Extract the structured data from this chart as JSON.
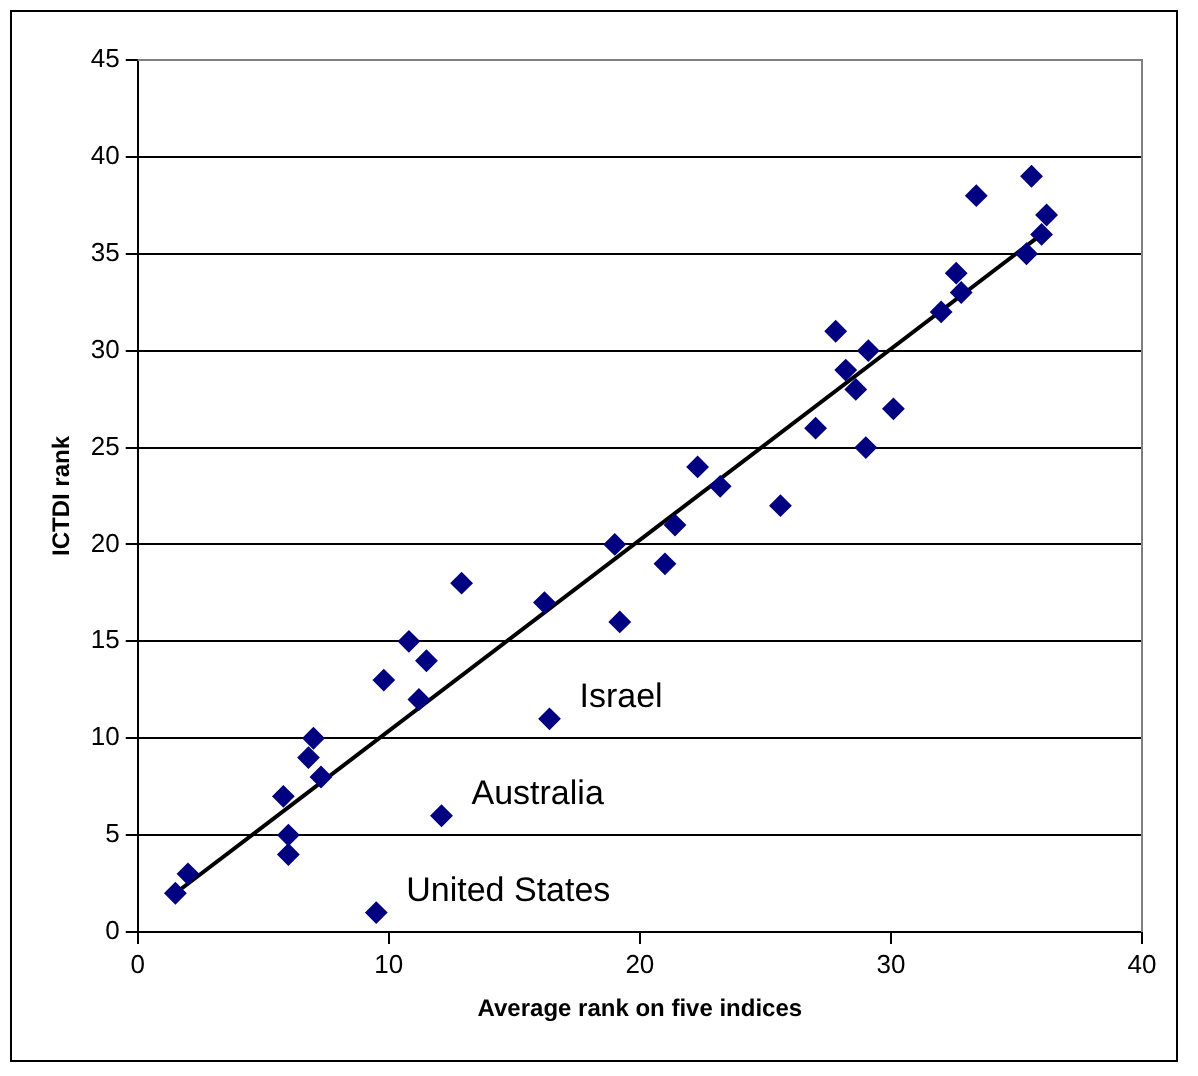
{
  "chart_data": {
    "type": "scatter",
    "xlabel": "Average rank on five indices",
    "ylabel": "ICTDI rank",
    "xlim": [
      0,
      40
    ],
    "xticks": [
      0,
      10,
      20,
      30,
      40
    ],
    "ylim": [
      0,
      45
    ],
    "yticks": [
      0,
      5,
      10,
      15,
      20,
      25,
      30,
      35,
      40,
      45
    ],
    "grid": "y",
    "legend": false,
    "marker": "diamond",
    "series": [
      {
        "color": "#000080",
        "x": [
          1.5,
          2,
          6,
          6,
          5.8,
          6.8,
          7,
          7.3,
          9.5,
          9.8,
          10.8,
          11.2,
          11.5,
          12.1,
          12.9,
          16.2,
          16.4,
          19,
          19.2,
          21,
          21.4,
          22.3,
          23.2,
          25.6,
          27,
          27.8,
          28.2,
          28.6,
          29,
          29.1,
          30.1,
          32,
          32.6,
          32.8,
          33.4,
          35.4,
          35.6,
          36,
          36.2
        ],
        "values": [
          2,
          3,
          4,
          5,
          7,
          9,
          10,
          8,
          1,
          13,
          15,
          12,
          14,
          6,
          18,
          17,
          11,
          20,
          16,
          19,
          21,
          24,
          23,
          22,
          26,
          31,
          29,
          28,
          25,
          30,
          27,
          32,
          34,
          33,
          38,
          35,
          39,
          36,
          37
        ]
      },
      {
        "type": "line",
        "color": "#000000",
        "marker": "none",
        "x": [
          1.5,
          36
        ],
        "values": [
          2,
          36
        ]
      }
    ],
    "annotations": [
      {
        "text": "Israel",
        "x": 16.4,
        "y": 11
      },
      {
        "text": "Australia",
        "x": 12.1,
        "y": 6
      },
      {
        "text": "United States",
        "x": 9.5,
        "y": 1
      }
    ]
  }
}
